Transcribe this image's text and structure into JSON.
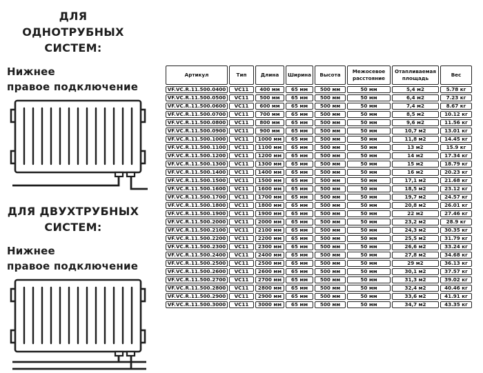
{
  "page": {
    "background": "#ffffff",
    "text_color": "#1d1d1d",
    "table_border_color": "#1f1f1f"
  },
  "sections": [
    {
      "title_line1": "ДЛЯ ОДНОТРУБНЫХ",
      "title_line2": "СИСТЕМ:",
      "subtitle_line1": "Нижнее",
      "subtitle_line2": "правое подключение",
      "diagram": "single-pipe-radiator-bottom-right-connection"
    },
    {
      "title_line1": "ДЛЯ ДВУХТРУБНЫХ",
      "title_line2": "СИСТЕМ:",
      "subtitle_line1": "Нижнее",
      "subtitle_line2": "правое подключение",
      "diagram": "two-pipe-radiator-bottom-right-connection"
    }
  ],
  "table": {
    "headers": [
      "Артикул",
      "Тип",
      "Длина",
      "Ширина",
      "Высота",
      "Межосевое расстояние",
      "Отапливаемая площадь",
      "Вес"
    ],
    "rows": [
      [
        "VF.VC.R.11.500.0400",
        "VC11",
        "400 мм",
        "65 мм",
        "500 мм",
        "50 мм",
        "5,4 м2",
        "5.78 кг"
      ],
      [
        "VF.VC.R.11.500.0500",
        "VC11",
        "500 мм",
        "65 мм",
        "500 мм",
        "50 мм",
        "6,4 м2",
        "7.23 кг"
      ],
      [
        "VF.VC.R.11.500.0600",
        "VC11",
        "600 мм",
        "65 мм",
        "500 мм",
        "50 мм",
        "7,4 м2",
        "8.67 кг"
      ],
      [
        "VF.VC.R.11.500.0700",
        "VC11",
        "700 мм",
        "65 мм",
        "500 мм",
        "50 мм",
        "8,5 м2",
        "10.12 кг"
      ],
      [
        "VF.VC.R.11.500.0800",
        "VC11",
        "800 мм",
        "65 мм",
        "500 мм",
        "50 мм",
        "9,6 м2",
        "11.56 кг"
      ],
      [
        "VF.VC.R.11.500.0900",
        "VC11",
        "900 мм",
        "65 мм",
        "500 мм",
        "50 мм",
        "10,7 м2",
        "13.01 кг"
      ],
      [
        "VF.VC.R.11.500.1000",
        "VC11",
        "1000 мм",
        "65 мм",
        "500 мм",
        "50 мм",
        "11,8 м2",
        "14.45 кг"
      ],
      [
        "VF.VC.R.11.500.1100",
        "VC11",
        "1100 мм",
        "65 мм",
        "500 мм",
        "50 мм",
        "13 м2",
        "15.9 кг"
      ],
      [
        "VF.VC.R.11.500.1200",
        "VC11",
        "1200 мм",
        "65 мм",
        "500 мм",
        "50 мм",
        "14 м2",
        "17.34 кг"
      ],
      [
        "VF.VC.R.11.500.1300",
        "VC11",
        "1300 мм",
        "65 мм",
        "500 мм",
        "50 мм",
        "15 м2",
        "18.79 кг"
      ],
      [
        "VF.VC.R.11.500.1400",
        "VC11",
        "1400 мм",
        "65 мм",
        "500 мм",
        "50 мм",
        "16 м2",
        "20.23 кг"
      ],
      [
        "VF.VC.R.11.500.1500",
        "VC11",
        "1500 мм",
        "65 мм",
        "500 мм",
        "50 мм",
        "17,1 м2",
        "21.68 кг"
      ],
      [
        "VF.VC.R.11.500.1600",
        "VC11",
        "1600 мм",
        "65 мм",
        "500 мм",
        "50 мм",
        "18,5 м2",
        "23.12 кг"
      ],
      [
        "VF.VC.R.11.500.1700",
        "VC11",
        "1700 мм",
        "65 мм",
        "500 мм",
        "50 мм",
        "19,7 м2",
        "24.57 кг"
      ],
      [
        "VF.VC.R.11.500.1800",
        "VC11",
        "1800 мм",
        "65 мм",
        "500 мм",
        "50 мм",
        "20,8 м2",
        "26.01 кг"
      ],
      [
        "VF.VC.R.11.500.1900",
        "VC11",
        "1900 мм",
        "65 мм",
        "500 мм",
        "50 мм",
        "22 м2",
        "27.46 кг"
      ],
      [
        "VF.VC.R.11.500.2000",
        "VC11",
        "2000 мм",
        "65 мм",
        "500 мм",
        "50 мм",
        "23,2 м2",
        "28.9 кг"
      ],
      [
        "VF.VC.R.11.500.2100",
        "VC11",
        "2100 мм",
        "65 мм",
        "500 мм",
        "50 мм",
        "24,3 м2",
        "30.35 кг"
      ],
      [
        "VF.VC.R.11.500.2200",
        "VC11",
        "2200 мм",
        "65 мм",
        "500 мм",
        "50 мм",
        "25,5 м2",
        "31.79 кг"
      ],
      [
        "VF.VC.R.11.500.2300",
        "VC11",
        "2300 мм",
        "65 мм",
        "500 мм",
        "50 мм",
        "26,6 м2",
        "33.24 кг"
      ],
      [
        "VF.VC.R.11.500.2400",
        "VC11",
        "2400 мм",
        "65 мм",
        "500 мм",
        "50 мм",
        "27,8 м2",
        "34.68 кг"
      ],
      [
        "VF.VC.R.11.500.2500",
        "VC11",
        "2500 мм",
        "65 мм",
        "500 мм",
        "50 мм",
        "29 м2",
        "36.13 кг"
      ],
      [
        "VF.VC.R.11.500.2600",
        "VC11",
        "2600 мм",
        "65 мм",
        "500 мм",
        "50 мм",
        "30,1 м2",
        "37.57 кг"
      ],
      [
        "VF.VC.R.11.500.2700",
        "VC11",
        "2700 мм",
        "65 мм",
        "500 мм",
        "50 мм",
        "31,3 м2",
        "39.02 кг"
      ],
      [
        "VF.VC.R.11.500.2800",
        "VC11",
        "2800 мм",
        "65 мм",
        "500 мм",
        "50 мм",
        "32,4 м2",
        "40.46 кг"
      ],
      [
        "VF.VC.R.11.500.2900",
        "VC11",
        "2900 мм",
        "65 мм",
        "500 мм",
        "50 мм",
        "33,6 м2",
        "41.91 кг"
      ],
      [
        "VF.VC.R.11.500.3000",
        "VC11",
        "3000 мм",
        "65 мм",
        "500 мм",
        "50 мм",
        "34,7 м2",
        "43.35 кг"
      ]
    ]
  }
}
